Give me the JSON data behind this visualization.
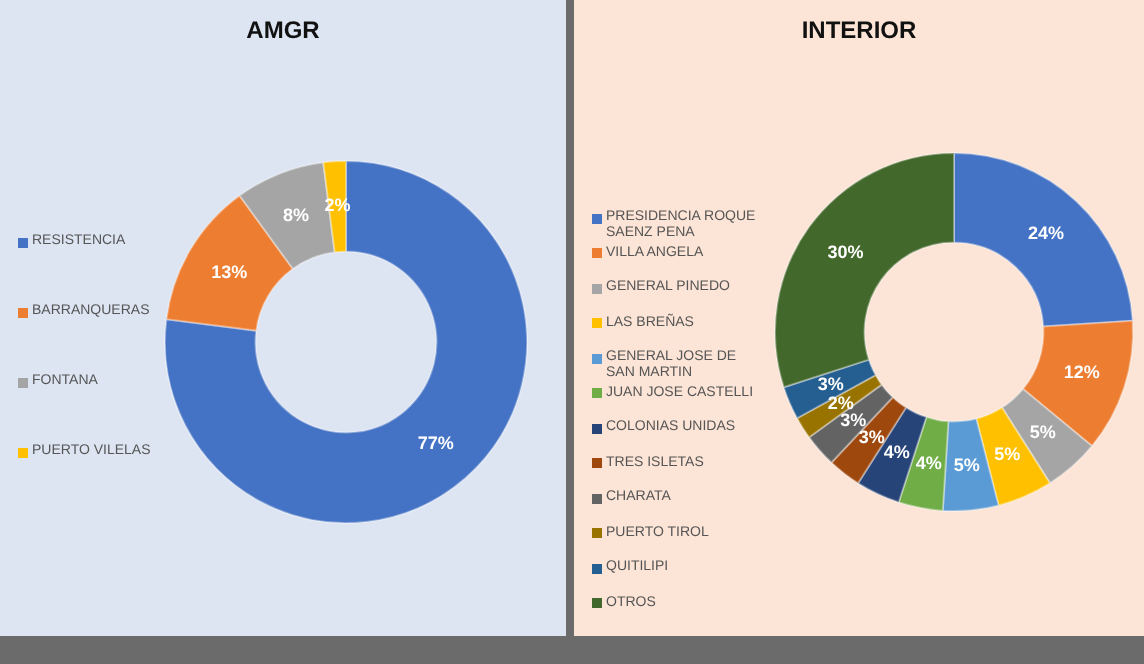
{
  "chart_data": [
    {
      "type": "donut",
      "title": "AMGR",
      "categories": [
        "RESISTENCIA",
        "BARRANQUERAS",
        "FONTANA",
        "PUERTO VILELAS"
      ],
      "values": [
        77,
        13,
        8,
        2
      ],
      "colors": [
        "#4472c4",
        "#ed7d31",
        "#a5a5a5",
        "#ffc000"
      ],
      "value_labels": [
        "77%",
        "13%",
        "8%",
        "2%"
      ],
      "legend": "left"
    },
    {
      "type": "donut",
      "title": "INTERIOR",
      "categories": [
        "PRESIDENCIA ROQUE SAENZ PENA",
        "VILLA ANGELA",
        "GENERAL PINEDO",
        "LAS BREÑAS",
        "GENERAL JOSE DE SAN MARTIN",
        "JUAN JOSE CASTELLI",
        "COLONIAS UNIDAS",
        "TRES ISLETAS",
        "CHARATA",
        "PUERTO TIROL",
        "QUITILIPI",
        "OTROS"
      ],
      "values": [
        24,
        12,
        5,
        5,
        5,
        4,
        4,
        3,
        3,
        2,
        3,
        30
      ],
      "colors": [
        "#4472c4",
        "#ed7d31",
        "#a5a5a5",
        "#ffc000",
        "#5b9bd5",
        "#70ad47",
        "#264478",
        "#9e480e",
        "#636363",
        "#997300",
        "#255e91",
        "#43682b"
      ],
      "value_labels": [
        "24%",
        "12%",
        "5%",
        "5%",
        "5%",
        "4%",
        "4%",
        "3%",
        "3%",
        "2%",
        "3%",
        "30%"
      ],
      "legend": "left"
    }
  ]
}
